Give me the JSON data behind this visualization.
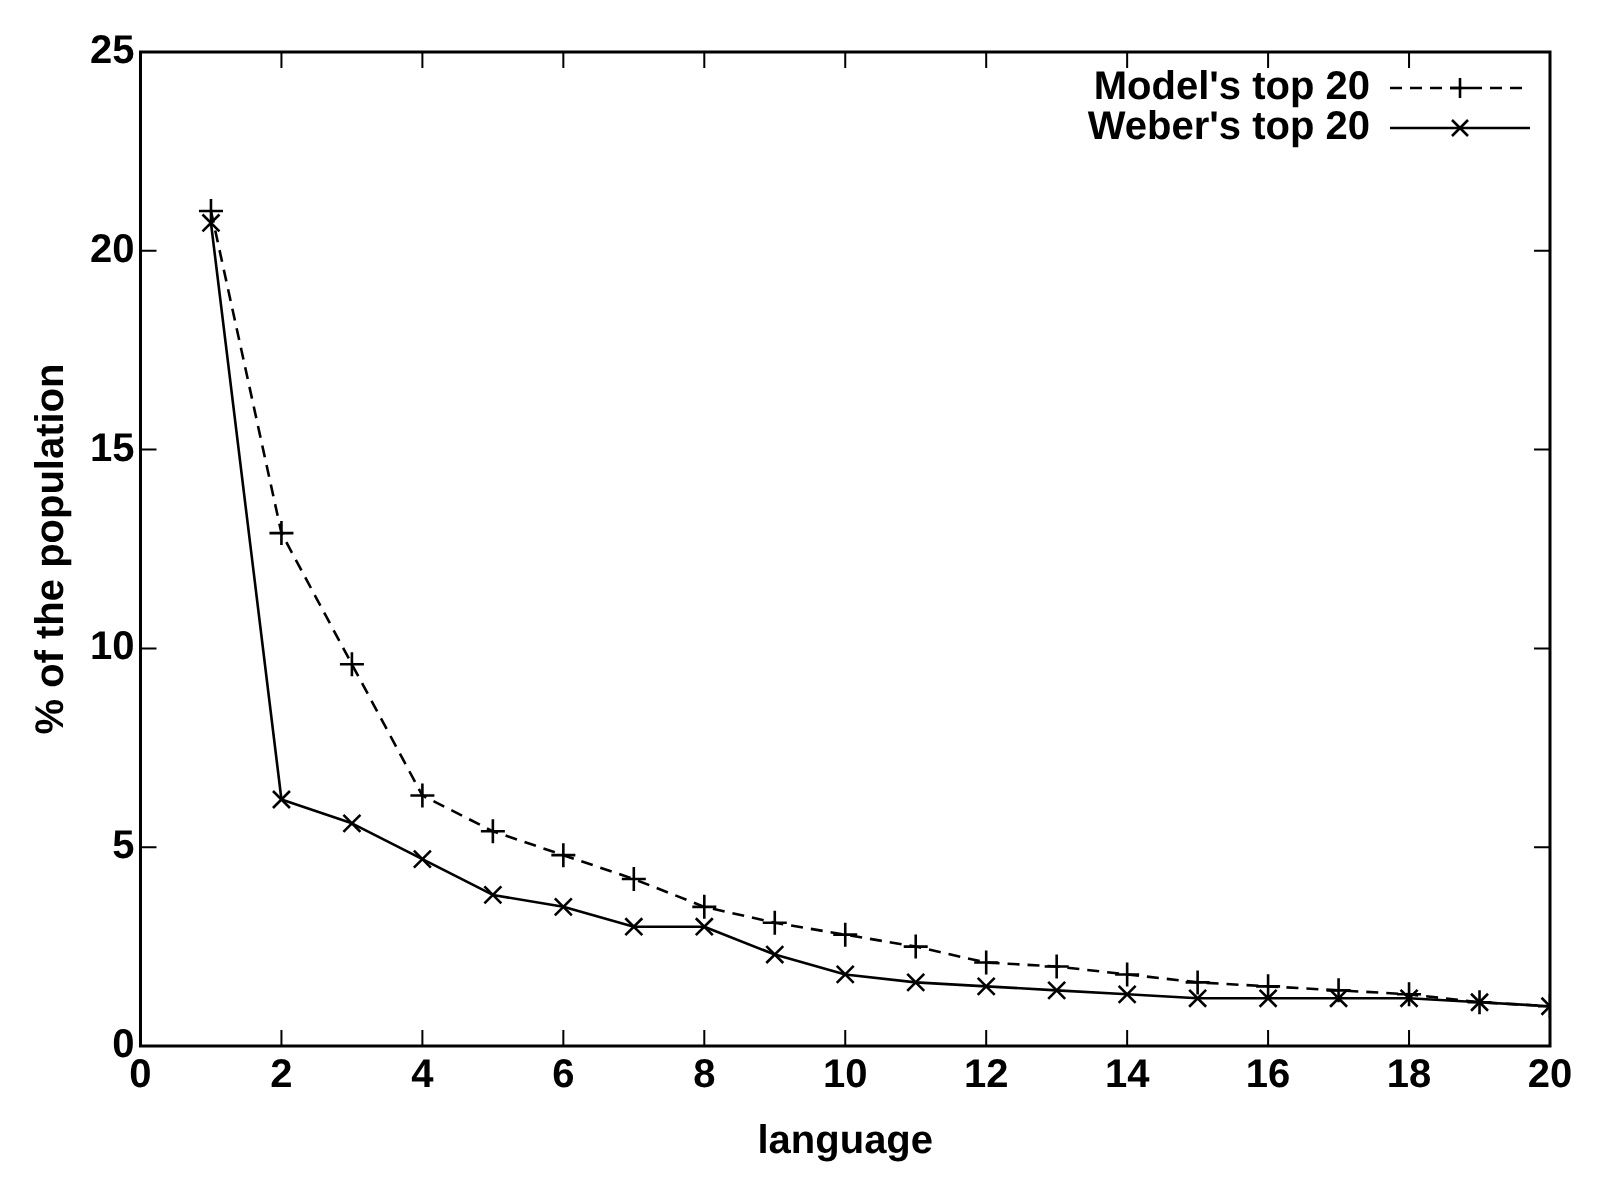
{
  "chart_data": {
    "type": "line",
    "xlabel": "language",
    "ylabel": "% of the population",
    "x": [
      1,
      2,
      3,
      4,
      5,
      6,
      7,
      8,
      9,
      10,
      11,
      12,
      13,
      14,
      15,
      16,
      17,
      18,
      19,
      20
    ],
    "series": [
      {
        "name": "Model's top 20",
        "color": "#000000",
        "marker": "cross",
        "line_style": "dashed",
        "values": [
          21.0,
          12.9,
          9.6,
          6.3,
          5.4,
          4.8,
          4.2,
          3.5,
          3.1,
          2.8,
          2.5,
          2.1,
          2.0,
          1.8,
          1.6,
          1.5,
          1.4,
          1.3,
          1.1,
          1.0
        ]
      },
      {
        "name": "Weber's top 20",
        "color": "#000000",
        "marker": "x",
        "line_style": "solid",
        "values": [
          20.7,
          6.2,
          5.6,
          4.7,
          3.8,
          3.5,
          3.0,
          3.0,
          2.3,
          1.8,
          1.6,
          1.5,
          1.4,
          1.3,
          1.2,
          1.2,
          1.2,
          1.2,
          1.1,
          1.0
        ]
      }
    ],
    "xlim": [
      0,
      20
    ],
    "xticks": [
      0,
      2,
      4,
      6,
      8,
      10,
      12,
      14,
      16,
      18,
      20
    ],
    "ylim": [
      0,
      25
    ],
    "yticks": [
      0,
      5,
      10,
      15,
      20,
      25
    ],
    "grid": false,
    "legend": "top right"
  }
}
